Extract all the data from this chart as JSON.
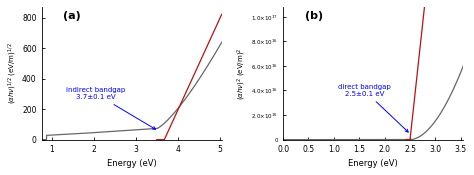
{
  "panel_a": {
    "label": "(a)",
    "xlabel": "Energy (eV)",
    "xlim": [
      0.75,
      5.05
    ],
    "ylim": [
      0,
      870
    ],
    "yticks": [
      0,
      200,
      400,
      600,
      800
    ],
    "xticks": [
      1.0,
      2.0,
      3.0,
      4.0,
      5.0
    ],
    "annotation": "indirect bandgap\n3.7±0.1 eV",
    "bandgap": 3.7,
    "curve_color": "#666666",
    "line_color": "#bb1111",
    "curve_flat_start": 0.85,
    "curve_flat_val": 30,
    "curve_rise_start": 1.4,
    "curve_rise_val": 60,
    "curve_steep_start": 3.5,
    "line_slope": 600,
    "line_x0": 3.68
  },
  "panel_b": {
    "label": "(b)",
    "xlabel": "Energy (eV)",
    "xlim": [
      0.0,
      3.55
    ],
    "ylim": [
      0,
      1.08e+17
    ],
    "yticks_vals": [
      0,
      2e+16,
      4e+16,
      6e+16,
      8e+16,
      1e+17
    ],
    "xticks": [
      0.0,
      0.5,
      1.0,
      1.5,
      2.0,
      2.5,
      3.0,
      3.5
    ],
    "annotation": "direct bandgap\n2.5±0.1 eV",
    "bandgap": 2.5,
    "curve_color": "#666666",
    "line_color": "#bb1111",
    "line_slope": 3.8e+17,
    "line_x0": 2.5
  }
}
